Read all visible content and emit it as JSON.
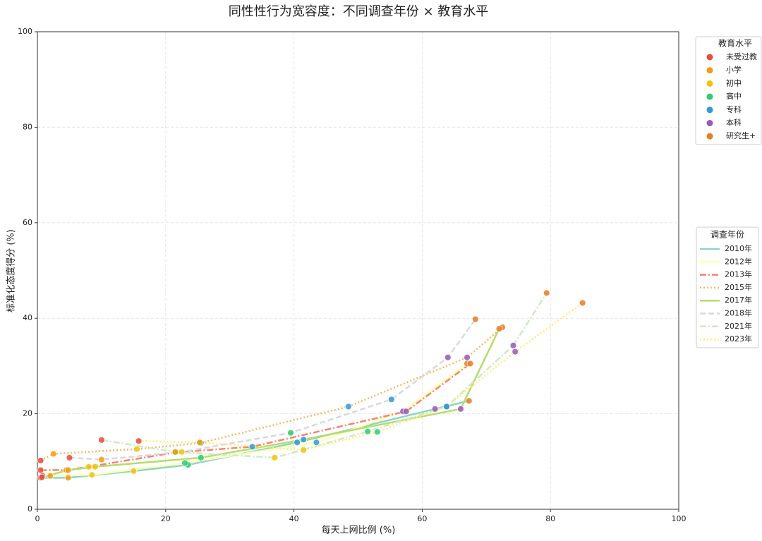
{
  "chart_data": {
    "type": "line",
    "title": "同性性行为宽容度：不同调查年份 × 教育水平",
    "xlabel": "每天上网比例 (%)",
    "ylabel": "标准化态度得分 (%)",
    "xlim": [
      0,
      100
    ],
    "ylim": [
      0,
      100
    ],
    "xticks": [
      0,
      20,
      40,
      60,
      80,
      100
    ],
    "yticks": [
      0,
      20,
      40,
      60,
      80,
      100
    ],
    "grid": true,
    "marker_legend_title": "教育水平",
    "marker_groups": [
      {
        "name": "未受过教",
        "color": "#e74c3c"
      },
      {
        "name": "小学",
        "color": "#f39c12"
      },
      {
        "name": "初中",
        "color": "#f1c40f"
      },
      {
        "name": "高中",
        "color": "#2ecc71"
      },
      {
        "name": "专科",
        "color": "#3498db"
      },
      {
        "name": "本科",
        "color": "#9b59b6"
      },
      {
        "name": "研究生+",
        "color": "#e67e22"
      }
    ],
    "line_legend_title": "调查年份",
    "series": [
      {
        "name": "2010年",
        "color": "#8fd3c7",
        "linestyle": "solid",
        "x": [
          0.5,
          4.8,
          15,
          23.5,
          40.5,
          62,
          67.3
        ],
        "values": [
          6.6,
          6.6,
          8.0,
          9.3,
          14.0,
          21.0,
          22.7
        ]
      },
      {
        "name": "2012年",
        "color": "#ffffb3",
        "linestyle": "solid",
        "x": [
          0.8,
          2,
          8.5,
          23,
          43.5,
          57,
          67
        ],
        "values": [
          7.0,
          7.0,
          7.2,
          9.7,
          14.0,
          20.5,
          30.5
        ]
      },
      {
        "name": "2013年",
        "color": "#fb8072",
        "linestyle": "dashdot",
        "x": [
          0.5,
          4.5,
          8,
          21.5,
          33.5,
          57.5,
          67.5
        ],
        "values": [
          8.2,
          8.2,
          8.9,
          11.9,
          13.1,
          20.5,
          30.5
        ]
      },
      {
        "name": "2015年",
        "color": "#fdb462",
        "linestyle": "dotted",
        "x": [
          0.5,
          2.5,
          15.5,
          25.5,
          48.5,
          67,
          72.5
        ],
        "values": [
          10.2,
          11.6,
          12.6,
          13.9,
          21.5,
          31.8,
          38.1
        ]
      },
      {
        "name": "2017年",
        "color": "#b3de69",
        "linestyle": "solid",
        "x": [
          0.7,
          4.8,
          9,
          25.5,
          41.5,
          66,
          72
        ],
        "values": [
          6.7,
          8.2,
          8.9,
          10.8,
          14.6,
          21.0,
          37.8
        ]
      },
      {
        "name": "2018年",
        "color": "#d9d9d9",
        "linestyle": "dashed",
        "x": [
          5,
          10,
          22.5,
          39.5,
          55.2,
          64,
          68.3
        ],
        "values": [
          10.8,
          10.4,
          12.0,
          16.0,
          23.0,
          31.8,
          39.8
        ]
      },
      {
        "name": "2021年",
        "color": "#ccebc5",
        "linestyle": "dashdot",
        "x": [
          10,
          21.5,
          37,
          51.5,
          63.8,
          74.2,
          79.4
        ],
        "values": [
          14.5,
          12.0,
          10.8,
          16.3,
          21.5,
          34.3,
          45.3
        ]
      },
      {
        "name": "2023年",
        "color": "#ffed6f",
        "linestyle": "dotted",
        "x": [
          15.8,
          25.3,
          41.5,
          53,
          63.8,
          74.5,
          85
        ],
        "values": [
          14.3,
          14.0,
          12.4,
          16.2,
          21.5,
          33.0,
          43.2
        ]
      }
    ]
  }
}
